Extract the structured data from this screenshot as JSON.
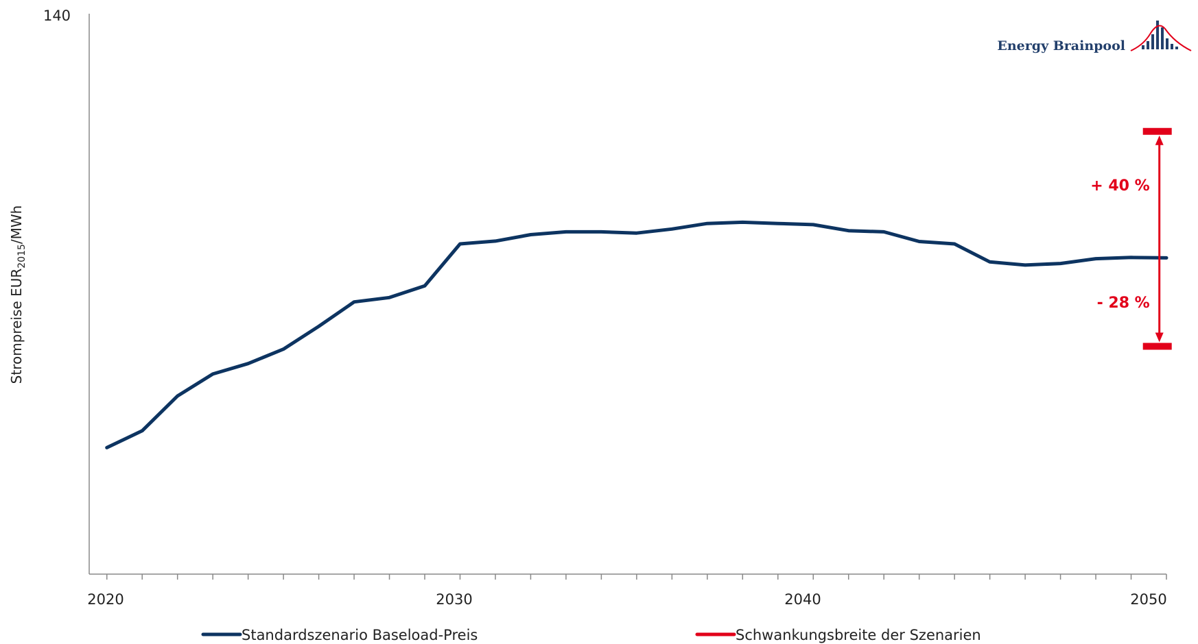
{
  "chart_data": {
    "type": "line",
    "ylabel": {
      "main": "Strompreise EUR",
      "sub": "2015",
      "suffix": "/MWh"
    },
    "ylim": [
      0,
      140
    ],
    "y_ticks": [
      "140"
    ],
    "xlim": [
      2019.5,
      2050
    ],
    "x_ticks": [
      "2020",
      "2030",
      "2040",
      "2050"
    ],
    "grid": false,
    "legend_position": "bottom",
    "series": [
      {
        "name": "Standardszenario Baseload-Preis",
        "color": "#0d3461",
        "x": [
          2020,
          2021,
          2022,
          2023,
          2024,
          2025,
          2026,
          2027,
          2028,
          2029,
          2030,
          2031,
          2032,
          2033,
          2034,
          2035,
          2036,
          2037,
          2038,
          2039,
          2040,
          2041,
          2042,
          2043,
          2044,
          2045,
          2046,
          2047,
          2048,
          2049,
          2050
        ],
        "values": [
          31.6,
          35.8,
          44.5,
          50.0,
          52.6,
          56.2,
          61.9,
          68.0,
          69.1,
          72.0,
          82.5,
          83.2,
          84.8,
          85.5,
          85.5,
          85.2,
          86.2,
          87.6,
          87.9,
          87.6,
          87.3,
          85.8,
          85.5,
          83.1,
          82.5,
          78.0,
          77.2,
          77.6,
          78.8,
          79.1,
          79.0
        ]
      }
    ],
    "range_indicator": {
      "name": "Schwankungsbreite der Szenarien",
      "color": "#e2001a",
      "x": 2049.8,
      "upper": 110.6,
      "lower": 56.9,
      "upper_label": "+ 40 %",
      "lower_label": "- 28 %"
    },
    "logo_text": "Energy Brainpool"
  }
}
